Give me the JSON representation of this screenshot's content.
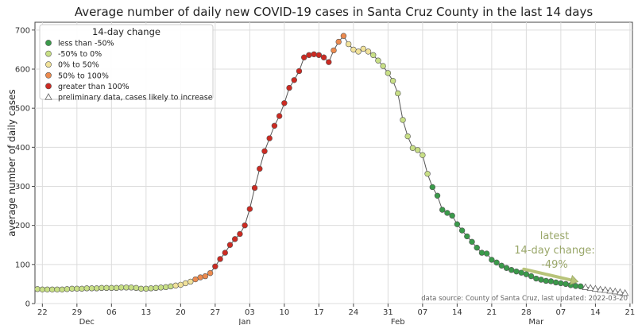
{
  "chart_data": {
    "type": "scatter",
    "title": "Average number of daily new COVID-19 cases in Santa Cruz County in the last 14 days",
    "ylabel": "average number of daily cases",
    "xlabel": "",
    "ylim": [
      0,
      720
    ],
    "yticks": [
      0,
      100,
      200,
      300,
      400,
      500,
      600,
      700
    ],
    "start_date": "2021-12-21",
    "day_ticks": [
      {
        "day": 1,
        "label": "22"
      },
      {
        "day": 8,
        "label": "29"
      },
      {
        "day": 15,
        "label": "06"
      },
      {
        "day": 22,
        "label": "13"
      },
      {
        "day": 29,
        "label": "20"
      },
      {
        "day": 36,
        "label": "27"
      },
      {
        "day": 43,
        "label": "03"
      },
      {
        "day": 50,
        "label": "10"
      },
      {
        "day": 57,
        "label": "17"
      },
      {
        "day": 64,
        "label": "24"
      },
      {
        "day": 71,
        "label": "31"
      },
      {
        "day": 78,
        "label": "07"
      },
      {
        "day": 85,
        "label": "14"
      },
      {
        "day": 92,
        "label": "21"
      },
      {
        "day": 99,
        "label": "28"
      },
      {
        "day": 106,
        "label": "07"
      },
      {
        "day": 113,
        "label": "14"
      },
      {
        "day": 120,
        "label": "21"
      }
    ],
    "month_labels": [
      {
        "day": 10,
        "label": "Dec"
      },
      {
        "day": 42,
        "label": "Jan"
      },
      {
        "day": 73,
        "label": "Feb"
      },
      {
        "day": 101,
        "label": "Mar"
      }
    ],
    "legend": {
      "title": "14-day change",
      "placement": "top-left",
      "entries": [
        {
          "label": "less than -50%",
          "color": "#3a9a4a",
          "shape": "circle"
        },
        {
          "label": "-50% to 0%",
          "color": "#c8df86",
          "shape": "circle"
        },
        {
          "label": "0% to 50%",
          "color": "#f1e29a",
          "shape": "circle"
        },
        {
          "label": "50% to 100%",
          "color": "#ec8a4e",
          "shape": "circle"
        },
        {
          "label": "greater than 100%",
          "color": "#cc2a22",
          "shape": "circle"
        },
        {
          "label": "preliminary data, cases likely to increase",
          "color": "#ffffff",
          "shape": "triangle"
        }
      ]
    },
    "colors": {
      "green": "#3a9a4a",
      "lightgreen": "#c8df86",
      "yellow": "#f1e29a",
      "orange": "#ec8a4e",
      "red": "#cc2a22",
      "line": "#555555",
      "arrow": "#b8c47a"
    },
    "series": [
      {
        "cat": "lightgreen",
        "points": [
          [
            0,
            37
          ],
          [
            1,
            36
          ],
          [
            2,
            36
          ],
          [
            3,
            36
          ],
          [
            4,
            36
          ],
          [
            5,
            36
          ],
          [
            6,
            37
          ],
          [
            7,
            38
          ],
          [
            8,
            38
          ],
          [
            9,
            38
          ],
          [
            10,
            39
          ],
          [
            11,
            39
          ],
          [
            12,
            39
          ],
          [
            13,
            40
          ],
          [
            14,
            40
          ],
          [
            15,
            40
          ],
          [
            16,
            40
          ],
          [
            17,
            41
          ],
          [
            18,
            41
          ],
          [
            19,
            41
          ],
          [
            20,
            40
          ],
          [
            21,
            38
          ],
          [
            22,
            38
          ],
          [
            23,
            39
          ],
          [
            24,
            40
          ],
          [
            25,
            41
          ],
          [
            26,
            42
          ],
          [
            27,
            44
          ]
        ]
      },
      {
        "cat": "yellow",
        "points": [
          [
            28,
            46
          ],
          [
            29,
            48
          ],
          [
            30,
            52
          ],
          [
            31,
            56
          ]
        ]
      },
      {
        "cat": "orange",
        "points": [
          [
            32,
            62
          ],
          [
            33,
            67
          ],
          [
            34,
            70
          ],
          [
            35,
            78
          ]
        ]
      },
      {
        "cat": "red",
        "points": [
          [
            36,
            95
          ],
          [
            37,
            114
          ],
          [
            38,
            130
          ],
          [
            39,
            150
          ],
          [
            40,
            165
          ],
          [
            41,
            178
          ],
          [
            42,
            200
          ],
          [
            43,
            242
          ],
          [
            44,
            296
          ],
          [
            45,
            345
          ],
          [
            46,
            390
          ],
          [
            47,
            423
          ],
          [
            48,
            455
          ],
          [
            49,
            480
          ],
          [
            50,
            513
          ],
          [
            51,
            552
          ],
          [
            52,
            572
          ],
          [
            53,
            595
          ],
          [
            54,
            630
          ],
          [
            55,
            636
          ],
          [
            56,
            638
          ],
          [
            57,
            636
          ],
          [
            58,
            630
          ],
          [
            59,
            618
          ]
        ]
      },
      {
        "cat": "orange",
        "points": [
          [
            60,
            648
          ],
          [
            61,
            670
          ],
          [
            62,
            685
          ]
        ]
      },
      {
        "cat": "yellow",
        "points": [
          [
            63,
            664
          ],
          [
            64,
            650
          ],
          [
            65,
            645
          ],
          [
            66,
            652
          ],
          [
            67,
            645
          ]
        ]
      },
      {
        "cat": "lightgreen",
        "points": [
          [
            68,
            636
          ],
          [
            69,
            622
          ],
          [
            70,
            608
          ],
          [
            71,
            590
          ],
          [
            72,
            570
          ],
          [
            73,
            538
          ],
          [
            74,
            470
          ],
          [
            75,
            428
          ],
          [
            76,
            398
          ],
          [
            77,
            393
          ],
          [
            78,
            380
          ],
          [
            79,
            332
          ]
        ]
      },
      {
        "cat": "green",
        "points": [
          [
            80,
            298
          ],
          [
            81,
            276
          ],
          [
            82,
            240
          ],
          [
            83,
            232
          ],
          [
            84,
            225
          ],
          [
            85,
            203
          ],
          [
            86,
            187
          ],
          [
            87,
            172
          ],
          [
            88,
            158
          ],
          [
            89,
            143
          ],
          [
            90,
            130
          ],
          [
            91,
            128
          ],
          [
            92,
            112
          ],
          [
            93,
            105
          ],
          [
            94,
            97
          ],
          [
            95,
            91
          ],
          [
            96,
            86
          ],
          [
            97,
            82
          ],
          [
            98,
            79
          ],
          [
            99,
            75
          ],
          [
            100,
            70
          ],
          [
            101,
            64
          ],
          [
            102,
            61
          ],
          [
            103,
            58
          ],
          [
            104,
            57
          ],
          [
            105,
            54
          ],
          [
            106,
            52
          ],
          [
            107,
            50
          ],
          [
            108,
            47
          ],
          [
            109,
            45
          ],
          [
            110,
            44
          ]
        ]
      },
      {
        "cat": "preliminary",
        "points": [
          [
            111,
            42
          ],
          [
            112,
            40
          ],
          [
            113,
            38
          ],
          [
            114,
            36
          ],
          [
            115,
            35
          ],
          [
            116,
            33
          ],
          [
            117,
            31
          ],
          [
            118,
            29
          ],
          [
            119,
            27
          ]
        ]
      }
    ],
    "annotation": {
      "lines": [
        "latest",
        "14-day change:",
        "-49%"
      ]
    },
    "source_note": "data source: County of Santa Cruz, last updated: 2022-03-20"
  }
}
